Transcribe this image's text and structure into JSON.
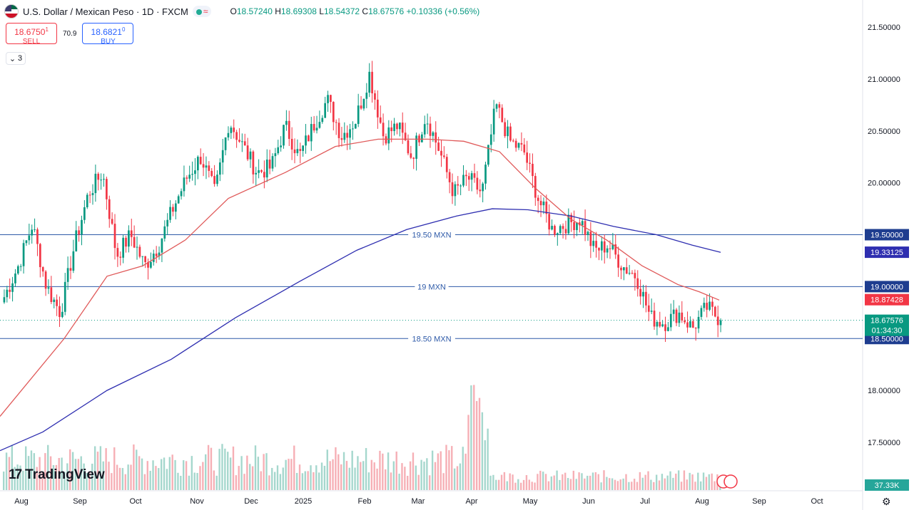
{
  "header": {
    "title": "U.S. Dollar / Mexican Peso · 1D · FXCM",
    "open_label": "O",
    "open": "18.57240",
    "high_label": "H",
    "high": "18.69308",
    "low_label": "L",
    "low": "18.54372",
    "close_label": "C",
    "close": "18.67576",
    "change": "+0.10336 (+0.56%)"
  },
  "trade": {
    "sell_price": "18.6750",
    "sell_sup": "1",
    "sell_label": "SELL",
    "spread": "70.9",
    "buy_price": "18.6821",
    "buy_sup": "0",
    "buy_label": "BUY"
  },
  "indicators_count": "3",
  "logo_text": "TradingView",
  "colors": {
    "up": "#089981",
    "down": "#f23645",
    "ma50": "#e05a5a",
    "ma200": "#2e2eb0",
    "hline": "#2e5aa8"
  },
  "chart_data": {
    "type": "candlestick",
    "x_ticks": [
      "Aug",
      "Sep",
      "Oct",
      "Nov",
      "Dec",
      "2025",
      "Feb",
      "Mar",
      "Apr",
      "May",
      "Jun",
      "Jul",
      "Aug",
      "Sep",
      "Oct"
    ],
    "y_ticks": [
      "21.50000",
      "21.00000",
      "20.50000",
      "20.00000",
      "19.50000",
      "19.00000",
      "18.50000",
      "18.00000",
      "17.50000"
    ],
    "ylim": [
      17.1,
      21.6
    ],
    "horizontal_lines": [
      {
        "label": "19.50 MXN",
        "value": 19.5,
        "tag": "19.50000"
      },
      {
        "label": "19 MXN",
        "value": 19.0,
        "tag": "19.00000"
      },
      {
        "label": "18.50 MXN",
        "value": 18.5,
        "tag": "18.50000"
      }
    ],
    "price_tags": {
      "ma200": "19.33125",
      "ma50": "18.87428",
      "last": "18.67576",
      "countdown": "01:34:30",
      "volume": "37.33K"
    },
    "price_anchors": [
      18.9,
      19.2,
      19.6,
      19.0,
      18.75,
      19.4,
      19.9,
      20.1,
      19.3,
      19.5,
      19.2,
      19.4,
      19.75,
      20.05,
      20.25,
      19.9,
      20.6,
      20.35,
      20.1,
      20.15,
      20.55,
      20.25,
      20.55,
      20.8,
      20.45,
      20.6,
      21.05,
      20.45,
      20.55,
      20.25,
      20.65,
      20.3,
      19.9,
      20.05,
      19.9,
      20.75,
      20.4,
      20.3,
      19.85,
      19.55,
      19.6,
      19.65,
      19.35,
      19.4,
      19.2,
      19.1,
      18.7,
      18.65,
      18.75,
      18.6,
      18.8,
      18.68
    ],
    "ma50": [
      [
        0,
        17.75
      ],
      [
        90,
        18.5
      ],
      [
        150,
        19.1
      ],
      [
        200,
        19.2
      ],
      [
        260,
        19.45
      ],
      [
        320,
        19.85
      ],
      [
        400,
        20.1
      ],
      [
        470,
        20.35
      ],
      [
        530,
        20.42
      ],
      [
        600,
        20.42
      ],
      [
        650,
        20.4
      ],
      [
        700,
        20.3
      ],
      [
        750,
        19.95
      ],
      [
        800,
        19.65
      ],
      [
        850,
        19.45
      ],
      [
        900,
        19.2
      ],
      [
        950,
        19.02
      ],
      [
        980,
        18.95
      ],
      [
        1008,
        18.87
      ]
    ],
    "ma200": [
      [
        0,
        17.42
      ],
      [
        60,
        17.6
      ],
      [
        150,
        18.0
      ],
      [
        240,
        18.3
      ],
      [
        330,
        18.7
      ],
      [
        420,
        19.05
      ],
      [
        500,
        19.35
      ],
      [
        570,
        19.55
      ],
      [
        640,
        19.68
      ],
      [
        690,
        19.75
      ],
      [
        740,
        19.74
      ],
      [
        800,
        19.68
      ],
      [
        860,
        19.58
      ],
      [
        920,
        19.5
      ],
      [
        970,
        19.4
      ],
      [
        1010,
        19.33
      ]
    ],
    "volume_axis_max": 40
  }
}
